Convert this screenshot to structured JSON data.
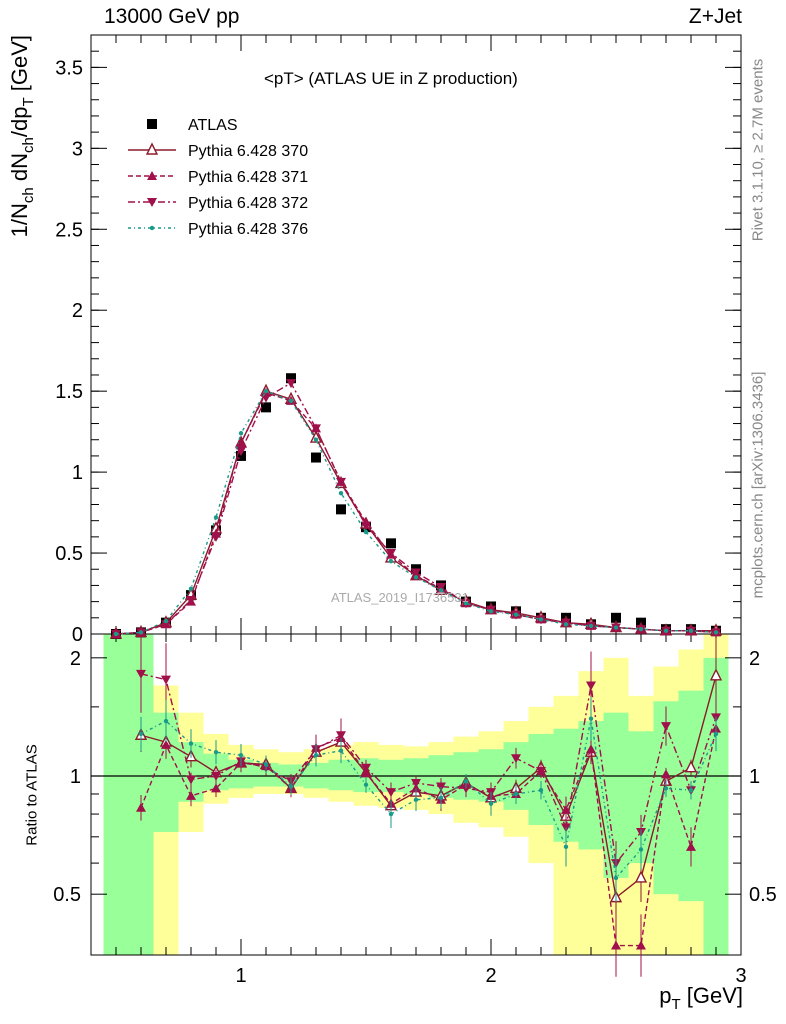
{
  "header": {
    "left": "13000 GeV pp",
    "right": "Z+Jet"
  },
  "side_text": {
    "rivet": "Rivet 3.1.10, ≥ 2.7M events",
    "mcplots": "mcplots.cern.ch [arXiv:1306.3436]"
  },
  "watermark": "ATLAS_2019_I1736531",
  "colors": {
    "atlas": "#000000",
    "p370": "#8b1a2b",
    "p371": "#a0104a",
    "p372": "#a0104a",
    "p376": "#1a9a8a",
    "band_yellow": "#ffff99",
    "band_green": "#99ff99"
  },
  "chart_data": [
    {
      "type": "line",
      "title": "<pT> (ATLAS UE in Z production)",
      "xlabel": "p_T [GeV]",
      "ylabel": "1/N_ch dN_ch/dp_T [GeV]",
      "xlim": [
        0.4,
        3.0
      ],
      "ylim": [
        0,
        3.7
      ],
      "yticks": [
        "0",
        "0.5",
        "1",
        "1.5",
        "2",
        "2.5",
        "3",
        "3.5"
      ],
      "legend": [
        "ATLAS",
        "Pythia 6.428 370",
        "Pythia 6.428 371",
        "Pythia 6.428 372",
        "Pythia 6.428 376"
      ],
      "legend_placement": "top-left",
      "x": [
        0.5,
        0.6,
        0.7,
        0.8,
        0.9,
        1.0,
        1.1,
        1.2,
        1.3,
        1.4,
        1.5,
        1.6,
        1.7,
        1.8,
        1.9,
        2.0,
        2.1,
        2.2,
        2.3,
        2.4,
        2.5,
        2.6,
        2.7,
        2.8,
        2.9
      ],
      "series": [
        {
          "name": "ATLAS",
          "marker": "square",
          "values": [
            0.0,
            0.01,
            0.07,
            0.24,
            0.64,
            1.1,
            1.4,
            1.58,
            1.09,
            0.77,
            0.66,
            0.56,
            0.4,
            0.3,
            0.2,
            0.17,
            0.14,
            0.1,
            0.1,
            0.06,
            0.1,
            0.07,
            0.03,
            0.03,
            0.02
          ]
        },
        {
          "name": "Pythia 6.428 370",
          "marker": "open-triangle-up",
          "values": [
            0.0,
            0.01,
            0.07,
            0.24,
            0.65,
            1.18,
            1.5,
            1.45,
            1.21,
            0.93,
            0.68,
            0.47,
            0.36,
            0.27,
            0.2,
            0.15,
            0.13,
            0.1,
            0.07,
            0.06,
            0.04,
            0.03,
            0.02,
            0.02,
            0.02
          ]
        },
        {
          "name": "Pythia 6.428 371",
          "marker": "triangle-up",
          "values": [
            0.0,
            0.01,
            0.06,
            0.2,
            0.62,
            1.18,
            1.49,
            1.44,
            1.27,
            0.94,
            0.69,
            0.49,
            0.36,
            0.28,
            0.19,
            0.15,
            0.12,
            0.09,
            0.07,
            0.05,
            0.04,
            0.03,
            0.02,
            0.02,
            0.01
          ]
        },
        {
          "name": "Pythia 6.428 372",
          "marker": "triangle-down",
          "values": [
            0.0,
            0.01,
            0.06,
            0.21,
            0.6,
            1.13,
            1.46,
            1.55,
            1.27,
            0.94,
            0.67,
            0.5,
            0.38,
            0.29,
            0.19,
            0.15,
            0.12,
            0.09,
            0.07,
            0.05,
            0.04,
            0.03,
            0.02,
            0.02,
            0.01
          ]
        },
        {
          "name": "Pythia 6.428 376",
          "marker": "dot",
          "values": [
            0.0,
            0.01,
            0.08,
            0.28,
            0.72,
            1.24,
            1.5,
            1.44,
            1.2,
            0.87,
            0.63,
            0.45,
            0.35,
            0.27,
            0.19,
            0.14,
            0.12,
            0.09,
            0.06,
            0.05,
            0.04,
            0.03,
            0.02,
            0.02,
            0.01
          ]
        }
      ]
    },
    {
      "type": "line",
      "title": "",
      "xlabel": "p_T [GeV]",
      "ylabel": "Ratio to ATLAS",
      "xlim": [
        0.4,
        3.0
      ],
      "ylim": [
        0.35,
        2.3
      ],
      "yticks": [
        "0.5",
        "1",
        "2"
      ],
      "xticks": [
        "1",
        "2",
        "3"
      ],
      "reference_line": 1,
      "bands": {
        "x_bins": [
          [
            0.45,
            0.55
          ],
          [
            0.55,
            0.65
          ],
          [
            0.65,
            0.75
          ],
          [
            0.75,
            0.85
          ],
          [
            0.85,
            0.95
          ],
          [
            0.95,
            1.05
          ],
          [
            1.05,
            1.15
          ],
          [
            1.15,
            1.25
          ],
          [
            1.25,
            1.35
          ],
          [
            1.35,
            1.45
          ],
          [
            1.45,
            1.55
          ],
          [
            1.55,
            1.65
          ],
          [
            1.65,
            1.75
          ],
          [
            1.75,
            1.85
          ],
          [
            1.85,
            1.95
          ],
          [
            1.95,
            2.05
          ],
          [
            2.05,
            2.15
          ],
          [
            2.15,
            2.25
          ],
          [
            2.25,
            2.35
          ],
          [
            2.35,
            2.45
          ],
          [
            2.45,
            2.55
          ],
          [
            2.55,
            2.65
          ],
          [
            2.65,
            2.75
          ],
          [
            2.75,
            2.85
          ],
          [
            2.85,
            2.95
          ]
        ],
        "yellow": [
          [
            0.35,
            2.3
          ],
          [
            0.35,
            2.3
          ],
          [
            0.35,
            1.7
          ],
          [
            0.72,
            1.45
          ],
          [
            0.85,
            1.28
          ],
          [
            0.88,
            1.2
          ],
          [
            0.9,
            1.17
          ],
          [
            0.9,
            1.15
          ],
          [
            0.88,
            1.17
          ],
          [
            0.86,
            1.2
          ],
          [
            0.84,
            1.22
          ],
          [
            0.83,
            1.2
          ],
          [
            0.82,
            1.19
          ],
          [
            0.8,
            1.22
          ],
          [
            0.76,
            1.26
          ],
          [
            0.74,
            1.3
          ],
          [
            0.7,
            1.38
          ],
          [
            0.6,
            1.5
          ],
          [
            0.35,
            1.6
          ],
          [
            0.35,
            1.85
          ],
          [
            0.35,
            2.0
          ],
          [
            0.35,
            1.6
          ],
          [
            0.35,
            1.9
          ],
          [
            0.35,
            2.1
          ],
          [
            0.35,
            2.3
          ]
        ],
        "green": [
          [
            0.35,
            2.3
          ],
          [
            0.35,
            2.3
          ],
          [
            0.72,
            1.45
          ],
          [
            0.86,
            1.22
          ],
          [
            0.92,
            1.14
          ],
          [
            0.93,
            1.1
          ],
          [
            0.94,
            1.08
          ],
          [
            0.94,
            1.07
          ],
          [
            0.93,
            1.08
          ],
          [
            0.92,
            1.1
          ],
          [
            0.91,
            1.11
          ],
          [
            0.91,
            1.1
          ],
          [
            0.9,
            1.11
          ],
          [
            0.88,
            1.13
          ],
          [
            0.87,
            1.15
          ],
          [
            0.86,
            1.17
          ],
          [
            0.82,
            1.22
          ],
          [
            0.75,
            1.28
          ],
          [
            0.68,
            1.32
          ],
          [
            0.65,
            1.38
          ],
          [
            0.55,
            1.45
          ],
          [
            0.6,
            1.3
          ],
          [
            0.5,
            1.55
          ],
          [
            0.48,
            1.65
          ],
          [
            0.35,
            2.0
          ]
        ]
      },
      "series": [
        {
          "name": "Pythia 6.428 370",
          "values": [
            null,
            1.27,
            1.22,
            1.12,
            1.02,
            1.08,
            1.07,
            0.93,
            1.15,
            1.22,
            1.02,
            0.84,
            0.91,
            0.89,
            0.96,
            0.88,
            0.93,
            1.05,
            0.79,
            1.15,
            0.49,
            0.55,
            0.97,
            1.05,
            1.8
          ]
        },
        {
          "name": "Pythia 6.428 371",
          "values": [
            null,
            0.83,
            1.2,
            0.89,
            0.93,
            1.08,
            1.06,
            0.93,
            1.18,
            1.25,
            1.02,
            0.85,
            0.93,
            0.87,
            0.95,
            0.89,
            0.9,
            1.03,
            0.82,
            1.17,
            0.37,
            0.37,
            1.01,
            0.66,
            1.32
          ]
        },
        {
          "name": "Pythia 6.428 372",
          "values": [
            null,
            1.82,
            1.76,
            0.98,
            1.0,
            1.09,
            1.05,
            0.97,
            1.17,
            1.27,
            1.05,
            0.91,
            0.96,
            0.94,
            0.93,
            0.91,
            1.11,
            1.03,
            0.74,
            1.7,
            0.6,
            0.72,
            1.34,
            0.92,
            1.41
          ]
        },
        {
          "name": "Pythia 6.428 376",
          "values": [
            null,
            1.28,
            1.38,
            1.21,
            1.15,
            1.13,
            1.07,
            0.94,
            1.13,
            1.16,
            0.95,
            0.8,
            0.87,
            0.88,
            0.97,
            0.85,
            0.9,
            0.92,
            0.66,
            1.4,
            0.55,
            0.65,
            0.93,
            0.92,
            1.28
          ]
        }
      ]
    }
  ]
}
